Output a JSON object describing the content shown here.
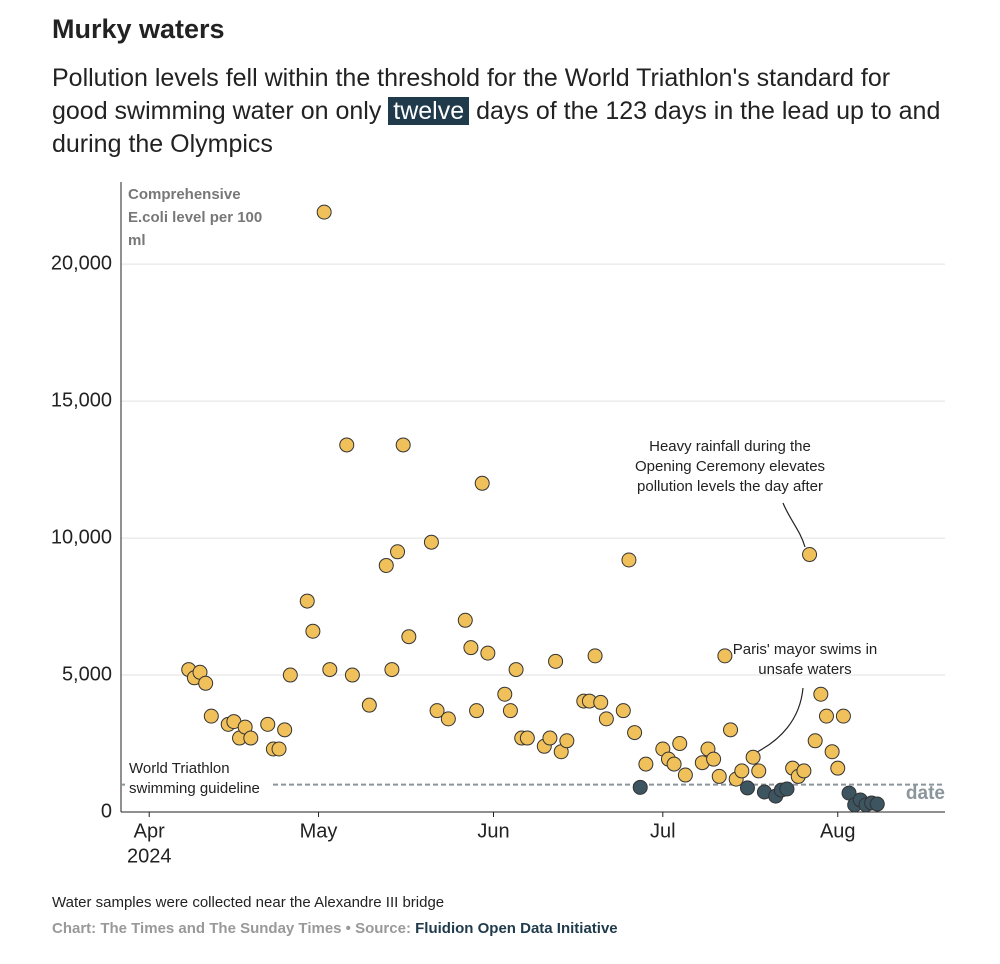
{
  "chart_data": {
    "type": "scatter",
    "title": "Murky waters",
    "subtitle_before": "Pollution levels fell within the threshold for the World Triathlon's standard for good swimming water on only",
    "subtitle_highlight": "twelve",
    "subtitle_after": "days of the 123 days in the lead up to and during the Olympics",
    "y_label_lines": [
      "Comprehensive",
      "E.coli level per 100",
      "ml"
    ],
    "x_label": "date",
    "xlim": [
      -5,
      141
    ],
    "xticks": [
      {
        "value": 0,
        "label": "Apr"
      },
      {
        "value": 30,
        "label": "May"
      },
      {
        "value": 61,
        "label": "Jun"
      },
      {
        "value": 91,
        "label": "Jul"
      },
      {
        "value": 122,
        "label": "Aug"
      }
    ],
    "x_year_label": "2024",
    "ylim": [
      0,
      23000
    ],
    "yticks": [
      0,
      {
        "value": 5000,
        "label": "5,000"
      },
      {
        "value": 10000,
        "label": "10,000"
      },
      {
        "value": 15000,
        "label": "15,000"
      },
      {
        "value": 20000,
        "label": "20,000"
      }
    ],
    "grid": true,
    "threshold": 1000,
    "threshold_label_lines": [
      "World Triathlon",
      "swimming guideline"
    ],
    "series": [
      {
        "color": "#f0c05a",
        "x": [
          7,
          8,
          9,
          10,
          11,
          14,
          15,
          16,
          17,
          18,
          21,
          22,
          23,
          24,
          25,
          28,
          29,
          31,
          32,
          35,
          36,
          39,
          42,
          43,
          44,
          45,
          46,
          50,
          51,
          53,
          56,
          57,
          58,
          59,
          60,
          63,
          64,
          65,
          66,
          67,
          70,
          71,
          72,
          73,
          74,
          77,
          78,
          79,
          80,
          81,
          84,
          85,
          86,
          88,
          91,
          92,
          93,
          94,
          95,
          98,
          99,
          100,
          101,
          102,
          103,
          104,
          105,
          107,
          108,
          114,
          115,
          116,
          117,
          118,
          119,
          120,
          121,
          122,
          123
        ],
        "values": [
          5200,
          4900,
          5100,
          4700,
          3500,
          3200,
          3300,
          2700,
          3100,
          2700,
          3200,
          2300,
          2300,
          3000,
          5000,
          7700,
          6600,
          21900,
          5200,
          13400,
          5000,
          3900,
          9000,
          5200,
          9500,
          13400,
          6400,
          9850,
          3700,
          3400,
          7000,
          6000,
          3700,
          12000,
          5800,
          4300,
          3700,
          5200,
          2700,
          2700,
          2400,
          2700,
          5500,
          2200,
          2600,
          4050,
          4050,
          5700,
          4000,
          3400,
          3700,
          9200,
          2900,
          1750,
          2300,
          1930,
          1750,
          2500,
          1350,
          1800,
          2300,
          1930,
          1300,
          5700,
          3000,
          1200,
          1500,
          2000,
          1500,
          1600,
          1300,
          1500,
          9400,
          2600,
          4300,
          3500,
          2200,
          1600,
          3500
        ]
      },
      {
        "color": "#3d5461",
        "x": [
          87,
          106,
          109,
          111,
          112,
          113,
          124,
          125,
          126,
          127,
          128,
          129
        ],
        "values": [
          900,
          880,
          730,
          580,
          800,
          840,
          690,
          260,
          440,
          260,
          330,
          290
        ]
      }
    ],
    "annotations": [
      {
        "lines": [
          "Heavy rainfall during the",
          "Opening Ceremony elevates",
          "pollution levels the day after"
        ]
      },
      {
        "lines": [
          "Paris' mayor swims in",
          "unsafe waters"
        ]
      }
    ],
    "note": "Water samples were collected near the Alexandre III bridge",
    "credit": "Chart: The Times and The Sunday Times • Source:",
    "source": "Fluidion Open Data Initiative"
  }
}
